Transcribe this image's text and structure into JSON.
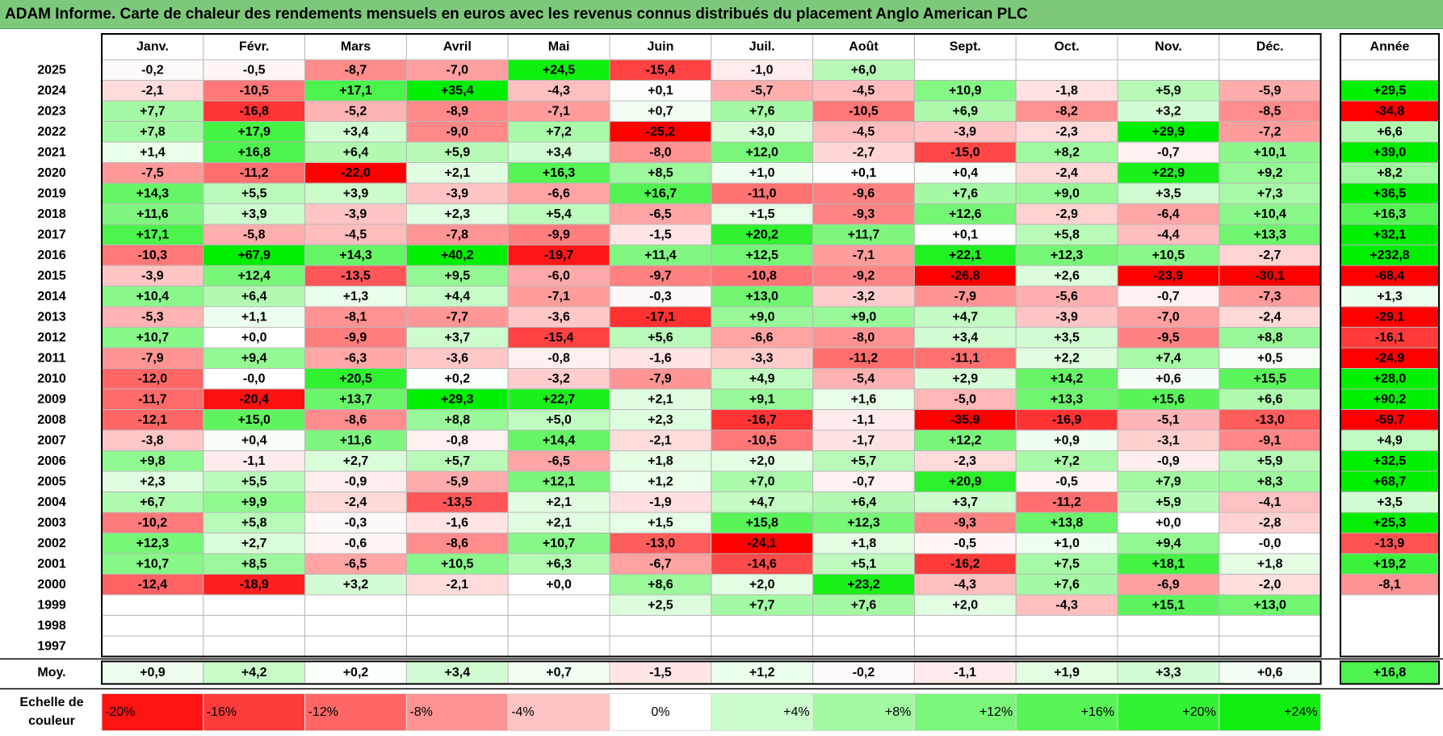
{
  "title": "ADAM Informe. Carte de chaleur des rendements mensuels en euros avec les revenus connus distribués du placement Anglo American PLC",
  "colors": {
    "title_bg": "#7ec87b",
    "neg_max": "#ff0000",
    "pos_max": "#00ee00",
    "neutral": "#ffffff",
    "grid": "#b8b8b8",
    "frame": "#000000"
  },
  "chart_data": {
    "type": "heatmap",
    "months": [
      "Janv.",
      "Févr.",
      "Mars",
      "Avril",
      "Mai",
      "Juin",
      "Juil.",
      "Août",
      "Sept.",
      "Oct.",
      "Nov.",
      "Déc."
    ],
    "year_header": "Année",
    "avg_label": "Moy.",
    "rows": [
      {
        "year": "2025",
        "months": [
          "-0,2",
          "-0,5",
          "-8,7",
          "-7,0",
          "+24,5",
          "-15,4",
          "-1,0",
          "+6,0",
          "",
          "",
          "",
          ""
        ],
        "annual": ""
      },
      {
        "year": "2024",
        "months": [
          "-2,1",
          "-10,5",
          "+17,1",
          "+35,4",
          "-4,3",
          "+0,1",
          "-5,7",
          "-4,5",
          "+10,9",
          "-1,8",
          "+5,9",
          "-5,9"
        ],
        "annual": "+29,5"
      },
      {
        "year": "2023",
        "months": [
          "+7,7",
          "-16,8",
          "-5,2",
          "-8,9",
          "-7,1",
          "+0,7",
          "+7,6",
          "-10,5",
          "+6,9",
          "-8,2",
          "+3,2",
          "-8,5"
        ],
        "annual": "-34,8"
      },
      {
        "year": "2022",
        "months": [
          "+7,8",
          "+17,9",
          "+3,4",
          "-9,0",
          "+7,2",
          "-25,2",
          "+3,0",
          "-4,5",
          "-3,9",
          "-2,3",
          "+29,9",
          "-7,2"
        ],
        "annual": "+6,6"
      },
      {
        "year": "2021",
        "months": [
          "+1,4",
          "+16,8",
          "+6,4",
          "+5,9",
          "+3,4",
          "-8,0",
          "+12,0",
          "-2,7",
          "-15,0",
          "+8,2",
          "-0,7",
          "+10,1"
        ],
        "annual": "+39,0"
      },
      {
        "year": "2020",
        "months": [
          "-7,5",
          "-11,2",
          "-22,0",
          "+2,1",
          "+16,3",
          "+8,5",
          "+1,0",
          "+0,1",
          "+0,4",
          "-2,4",
          "+22,9",
          "+9,2"
        ],
        "annual": "+8,2"
      },
      {
        "year": "2019",
        "months": [
          "+14,3",
          "+5,5",
          "+3,9",
          "-3,9",
          "-6,6",
          "+16,7",
          "-11,0",
          "-9,6",
          "+7,6",
          "+9,0",
          "+3,5",
          "+7,3"
        ],
        "annual": "+36,5"
      },
      {
        "year": "2018",
        "months": [
          "+11,6",
          "+3,9",
          "-3,9",
          "+2,3",
          "+5,4",
          "-6,5",
          "+1,5",
          "-9,3",
          "+12,6",
          "-2,9",
          "-6,4",
          "+10,4"
        ],
        "annual": "+16,3"
      },
      {
        "year": "2017",
        "months": [
          "+17,1",
          "-5,8",
          "-4,5",
          "-7,8",
          "-9,9",
          "-1,5",
          "+20,2",
          "+11,7",
          "+0,1",
          "+5,8",
          "-4,4",
          "+13,3"
        ],
        "annual": "+32,1"
      },
      {
        "year": "2016",
        "months": [
          "-10,3",
          "+67,9",
          "+14,3",
          "+40,2",
          "-19,7",
          "+11,4",
          "+12,5",
          "-7,1",
          "+22,1",
          "+12,3",
          "+10,5",
          "-2,7"
        ],
        "annual": "+232,8"
      },
      {
        "year": "2015",
        "months": [
          "-3,9",
          "+12,4",
          "-13,5",
          "+9,5",
          "-6,0",
          "-9,7",
          "-10,8",
          "-9,2",
          "-26,8",
          "+2,6",
          "-23,9",
          "-30,1"
        ],
        "annual": "-68,4"
      },
      {
        "year": "2014",
        "months": [
          "+10,4",
          "+6,4",
          "+1,3",
          "+4,4",
          "-7,1",
          "-0,3",
          "+13,0",
          "-3,2",
          "-7,9",
          "-5,6",
          "-0,7",
          "-7,3"
        ],
        "annual": "+1,3"
      },
      {
        "year": "2013",
        "months": [
          "-5,3",
          "+1,1",
          "-8,1",
          "-7,7",
          "-3,6",
          "-17,1",
          "+9,0",
          "+9,0",
          "+4,7",
          "-3,9",
          "-7,0",
          "-2,4"
        ],
        "annual": "-29,1"
      },
      {
        "year": "2012",
        "months": [
          "+10,7",
          "+0,0",
          "-9,9",
          "+3,7",
          "-15,4",
          "+5,6",
          "-6,6",
          "-8,0",
          "+3,4",
          "+3,5",
          "-9,5",
          "+8,8"
        ],
        "annual": "-16,1"
      },
      {
        "year": "2011",
        "months": [
          "-7,9",
          "+9,4",
          "-6,3",
          "-3,6",
          "-0,8",
          "-1,6",
          "-3,3",
          "-11,2",
          "-11,1",
          "+2,2",
          "+7,4",
          "+0,5"
        ],
        "annual": "-24,9"
      },
      {
        "year": "2010",
        "months": [
          "-12,0",
          "-0,0",
          "+20,5",
          "+0,2",
          "-3,2",
          "-7,9",
          "+4,9",
          "-5,4",
          "+2,9",
          "+14,2",
          "+0,6",
          "+15,5"
        ],
        "annual": "+28,0"
      },
      {
        "year": "2009",
        "months": [
          "-11,7",
          "-20,4",
          "+13,7",
          "+29,3",
          "+22,7",
          "+2,1",
          "+9,1",
          "+1,6",
          "-5,0",
          "+13,3",
          "+15,6",
          "+6,6"
        ],
        "annual": "+90,2"
      },
      {
        "year": "2008",
        "months": [
          "-12,1",
          "+15,0",
          "-8,6",
          "+8,8",
          "+5,0",
          "+2,3",
          "-16,7",
          "-1,1",
          "-35,9",
          "-16,9",
          "-5,1",
          "-13,0"
        ],
        "annual": "-59,7"
      },
      {
        "year": "2007",
        "months": [
          "-3,8",
          "+0,4",
          "+11,6",
          "-0,8",
          "+14,4",
          "-2,1",
          "-10,5",
          "-1,7",
          "+12,2",
          "+0,9",
          "-3,1",
          "-9,1"
        ],
        "annual": "+4,9"
      },
      {
        "year": "2006",
        "months": [
          "+9,8",
          "-1,1",
          "+2,7",
          "+5,7",
          "-6,5",
          "+1,8",
          "+2,0",
          "+5,7",
          "-2,3",
          "+7,2",
          "-0,9",
          "+5,9"
        ],
        "annual": "+32,5"
      },
      {
        "year": "2005",
        "months": [
          "+2,3",
          "+5,5",
          "-0,9",
          "-5,9",
          "+12,1",
          "+1,2",
          "+7,0",
          "-0,7",
          "+20,9",
          "-0,5",
          "+7,9",
          "+8,3"
        ],
        "annual": "+68,7"
      },
      {
        "year": "2004",
        "months": [
          "+6,7",
          "+9,9",
          "-2,4",
          "-13,5",
          "+2,1",
          "-1,9",
          "+4,7",
          "+6,4",
          "+3,7",
          "-11,2",
          "+5,9",
          "-4,1"
        ],
        "annual": "+3,5"
      },
      {
        "year": "2003",
        "months": [
          "-10,2",
          "+5,8",
          "-0,3",
          "-1,6",
          "+2,1",
          "+1,5",
          "+15,8",
          "+12,3",
          "-9,3",
          "+13,8",
          "+0,0",
          "-2,8"
        ],
        "annual": "+25,3"
      },
      {
        "year": "2002",
        "months": [
          "+12,3",
          "+2,7",
          "-0,6",
          "-8,6",
          "+10,7",
          "-13,0",
          "-24,1",
          "+1,8",
          "-0,5",
          "+1,0",
          "+9,4",
          "-0,0"
        ],
        "annual": "-13,9"
      },
      {
        "year": "2001",
        "months": [
          "+10,7",
          "+8,5",
          "-6,5",
          "+10,5",
          "+6,3",
          "-6,7",
          "-14,6",
          "+5,1",
          "-16,2",
          "+7,5",
          "+18,1",
          "+1,8"
        ],
        "annual": "+19,2"
      },
      {
        "year": "2000",
        "months": [
          "-12,4",
          "-18,9",
          "+3,2",
          "-2,1",
          "+0,0",
          "+8,6",
          "+2,0",
          "+23,2",
          "-4,3",
          "+7,6",
          "-6,9",
          "-2,0"
        ],
        "annual": "-8,1"
      },
      {
        "year": "1999",
        "months": [
          "",
          "",
          "",
          "",
          "",
          "+2,5",
          "+7,7",
          "+7,6",
          "+2,0",
          "-4,3",
          "+15,1",
          "+13,0"
        ],
        "annual": ""
      },
      {
        "year": "1998",
        "months": [
          "",
          "",
          "",
          "",
          "",
          "",
          "",
          "",
          "",
          "",
          "",
          ""
        ],
        "annual": ""
      },
      {
        "year": "1997",
        "months": [
          "",
          "",
          "",
          "",
          "",
          "",
          "",
          "",
          "",
          "",
          "",
          ""
        ],
        "annual": ""
      }
    ],
    "average": {
      "months": [
        "+0,9",
        "+4,2",
        "+0,2",
        "+3,4",
        "+0,7",
        "-1,5",
        "+1,2",
        "-0,2",
        "-1,1",
        "+1,9",
        "+3,3",
        "+0,6"
      ],
      "annual": "+16,8"
    },
    "scale": {
      "label_line1": "Echelle de",
      "label_line2": "couleur",
      "steps": [
        {
          "label": "-20%",
          "value": -20
        },
        {
          "label": "-16%",
          "value": -16
        },
        {
          "label": "-12%",
          "value": -12
        },
        {
          "label": "-8%",
          "value": -8
        },
        {
          "label": "-4%",
          "value": -4
        },
        {
          "label": "0%",
          "value": 0
        },
        {
          "label": "+4%",
          "value": 4
        },
        {
          "label": "+8%",
          "value": 8
        },
        {
          "label": "+12%",
          "value": 12
        },
        {
          "label": "+16%",
          "value": 16
        },
        {
          "label": "+20%",
          "value": 20
        },
        {
          "label": "+24%",
          "value": 24
        }
      ]
    }
  }
}
